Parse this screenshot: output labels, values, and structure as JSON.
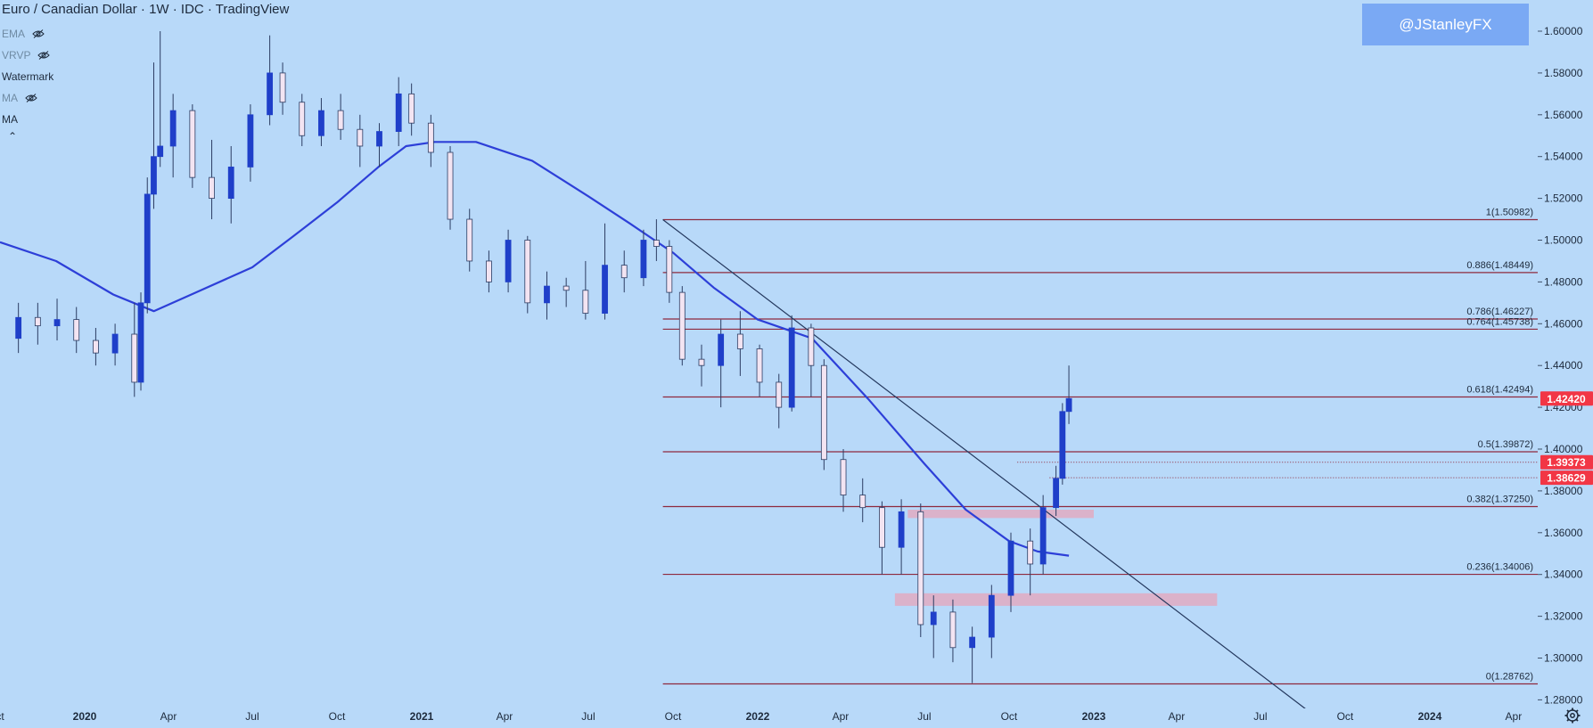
{
  "header": {
    "title": "Euro / Canadian Dollar · 1W · IDC · TradingView"
  },
  "indicators": [
    {
      "label": "EMA",
      "hidden": true
    },
    {
      "label": "VRVP",
      "hidden": true
    },
    {
      "label": "Watermark",
      "hidden": false
    },
    {
      "label": "MA",
      "hidden": true
    },
    {
      "label": "MA",
      "hidden": false
    }
  ],
  "watermark": "@JStanleyFX",
  "colors": {
    "background": "#b8d9f9",
    "bull": "#1f3fc9",
    "bear": "#f3e4f2",
    "wick": "#2c3d63",
    "ma_line": "#2d3fd8",
    "fib_line": "#8e2a3e",
    "trendline": "#24385e",
    "zone": "#e0aac2",
    "price_tag": "#f23645",
    "watermark_bg": "#7aa9f4"
  },
  "chart_data": {
    "type": "candlestick",
    "title": "Euro / Canadian Dollar · 1W · IDC · TradingView",
    "symbol": "EURCAD",
    "interval": "1W",
    "ylim": [
      1.27,
      1.61
    ],
    "y_ticks": [
      "1.28000",
      "1.30000",
      "1.32000",
      "1.34000",
      "1.36000",
      "1.38000",
      "1.40000",
      "1.42000",
      "1.44000",
      "1.46000",
      "1.48000",
      "1.50000",
      "1.52000",
      "1.54000",
      "1.56000",
      "1.58000",
      "1.60000"
    ],
    "x_ticks": [
      {
        "label": "ct",
        "date": "2019-10-01",
        "bold": false
      },
      {
        "label": "2020",
        "date": "2020-01-01",
        "bold": true
      },
      {
        "label": "Apr",
        "date": "2020-04-01",
        "bold": false
      },
      {
        "label": "Jul",
        "date": "2020-07-01",
        "bold": false
      },
      {
        "label": "Oct",
        "date": "2020-10-01",
        "bold": false
      },
      {
        "label": "2021",
        "date": "2021-01-01",
        "bold": true
      },
      {
        "label": "Apr",
        "date": "2021-04-01",
        "bold": false
      },
      {
        "label": "Jul",
        "date": "2021-07-01",
        "bold": false
      },
      {
        "label": "Oct",
        "date": "2021-10-01",
        "bold": false
      },
      {
        "label": "2022",
        "date": "2022-01-01",
        "bold": true
      },
      {
        "label": "Apr",
        "date": "2022-04-01",
        "bold": false
      },
      {
        "label": "Jul",
        "date": "2022-07-01",
        "bold": false
      },
      {
        "label": "Oct",
        "date": "2022-10-01",
        "bold": false
      },
      {
        "label": "2023",
        "date": "2023-01-01",
        "bold": true
      },
      {
        "label": "Apr",
        "date": "2023-04-01",
        "bold": false
      },
      {
        "label": "Jul",
        "date": "2023-07-01",
        "bold": false
      },
      {
        "label": "Oct",
        "date": "2023-10-01",
        "bold": false
      },
      {
        "label": "2024",
        "date": "2024-01-01",
        "bold": true
      },
      {
        "label": "Apr",
        "date": "2024-04-01",
        "bold": false
      }
    ],
    "candles": [
      {
        "date": "2019-10-21",
        "o": 1.453,
        "h": 1.47,
        "l": 1.446,
        "c": 1.463
      },
      {
        "date": "2019-11-11",
        "o": 1.463,
        "h": 1.47,
        "l": 1.45,
        "c": 1.459
      },
      {
        "date": "2019-12-02",
        "o": 1.459,
        "h": 1.472,
        "l": 1.452,
        "c": 1.462
      },
      {
        "date": "2019-12-23",
        "o": 1.462,
        "h": 1.468,
        "l": 1.446,
        "c": 1.452
      },
      {
        "date": "2020-01-13",
        "o": 1.452,
        "h": 1.458,
        "l": 1.44,
        "c": 1.446
      },
      {
        "date": "2020-02-03",
        "o": 1.446,
        "h": 1.46,
        "l": 1.44,
        "c": 1.455
      },
      {
        "date": "2020-02-24",
        "o": 1.455,
        "h": 1.47,
        "l": 1.425,
        "c": 1.432
      },
      {
        "date": "2020-03-02",
        "o": 1.432,
        "h": 1.475,
        "l": 1.428,
        "c": 1.47
      },
      {
        "date": "2020-03-09",
        "o": 1.47,
        "h": 1.53,
        "l": 1.465,
        "c": 1.522
      },
      {
        "date": "2020-03-16",
        "o": 1.522,
        "h": 1.585,
        "l": 1.515,
        "c": 1.54
      },
      {
        "date": "2020-03-23",
        "o": 1.54,
        "h": 1.6,
        "l": 1.535,
        "c": 1.545
      },
      {
        "date": "2020-04-06",
        "o": 1.545,
        "h": 1.57,
        "l": 1.53,
        "c": 1.562
      },
      {
        "date": "2020-04-27",
        "o": 1.562,
        "h": 1.565,
        "l": 1.525,
        "c": 1.53
      },
      {
        "date": "2020-05-18",
        "o": 1.53,
        "h": 1.548,
        "l": 1.51,
        "c": 1.52
      },
      {
        "date": "2020-06-08",
        "o": 1.52,
        "h": 1.545,
        "l": 1.508,
        "c": 1.535
      },
      {
        "date": "2020-06-29",
        "o": 1.535,
        "h": 1.565,
        "l": 1.528,
        "c": 1.56
      },
      {
        "date": "2020-07-20",
        "o": 1.56,
        "h": 1.598,
        "l": 1.555,
        "c": 1.58
      },
      {
        "date": "2020-08-03",
        "o": 1.58,
        "h": 1.585,
        "l": 1.56,
        "c": 1.566
      },
      {
        "date": "2020-08-24",
        "o": 1.566,
        "h": 1.57,
        "l": 1.545,
        "c": 1.55
      },
      {
        "date": "2020-09-14",
        "o": 1.55,
        "h": 1.568,
        "l": 1.545,
        "c": 1.562
      },
      {
        "date": "2020-10-05",
        "o": 1.562,
        "h": 1.57,
        "l": 1.548,
        "c": 1.553
      },
      {
        "date": "2020-10-26",
        "o": 1.553,
        "h": 1.56,
        "l": 1.535,
        "c": 1.545
      },
      {
        "date": "2020-11-16",
        "o": 1.545,
        "h": 1.556,
        "l": 1.535,
        "c": 1.552
      },
      {
        "date": "2020-12-07",
        "o": 1.552,
        "h": 1.578,
        "l": 1.545,
        "c": 1.57
      },
      {
        "date": "2020-12-21",
        "o": 1.57,
        "h": 1.575,
        "l": 1.55,
        "c": 1.556
      },
      {
        "date": "2021-01-11",
        "o": 1.556,
        "h": 1.56,
        "l": 1.535,
        "c": 1.542
      },
      {
        "date": "2021-02-01",
        "o": 1.542,
        "h": 1.545,
        "l": 1.505,
        "c": 1.51
      },
      {
        "date": "2021-02-22",
        "o": 1.51,
        "h": 1.515,
        "l": 1.485,
        "c": 1.49
      },
      {
        "date": "2021-03-15",
        "o": 1.49,
        "h": 1.495,
        "l": 1.475,
        "c": 1.48
      },
      {
        "date": "2021-04-05",
        "o": 1.48,
        "h": 1.505,
        "l": 1.475,
        "c": 1.5
      },
      {
        "date": "2021-04-26",
        "o": 1.5,
        "h": 1.502,
        "l": 1.465,
        "c": 1.47
      },
      {
        "date": "2021-05-17",
        "o": 1.47,
        "h": 1.485,
        "l": 1.462,
        "c": 1.478
      },
      {
        "date": "2021-06-07",
        "o": 1.478,
        "h": 1.482,
        "l": 1.468,
        "c": 1.476
      },
      {
        "date": "2021-06-28",
        "o": 1.476,
        "h": 1.49,
        "l": 1.462,
        "c": 1.465
      },
      {
        "date": "2021-07-19",
        "o": 1.465,
        "h": 1.508,
        "l": 1.462,
        "c": 1.488
      },
      {
        "date": "2021-08-09",
        "o": 1.488,
        "h": 1.495,
        "l": 1.475,
        "c": 1.482
      },
      {
        "date": "2021-08-30",
        "o": 1.482,
        "h": 1.505,
        "l": 1.478,
        "c": 1.5
      },
      {
        "date": "2021-09-13",
        "o": 1.5,
        "h": 1.51,
        "l": 1.49,
        "c": 1.497
      },
      {
        "date": "2021-09-27",
        "o": 1.497,
        "h": 1.5,
        "l": 1.47,
        "c": 1.475
      },
      {
        "date": "2021-10-11",
        "o": 1.475,
        "h": 1.478,
        "l": 1.44,
        "c": 1.443
      },
      {
        "date": "2021-11-01",
        "o": 1.443,
        "h": 1.45,
        "l": 1.43,
        "c": 1.44
      },
      {
        "date": "2021-11-22",
        "o": 1.44,
        "h": 1.462,
        "l": 1.42,
        "c": 1.455
      },
      {
        "date": "2021-12-13",
        "o": 1.455,
        "h": 1.466,
        "l": 1.435,
        "c": 1.448
      },
      {
        "date": "2022-01-03",
        "o": 1.448,
        "h": 1.45,
        "l": 1.425,
        "c": 1.432
      },
      {
        "date": "2022-01-24",
        "o": 1.432,
        "h": 1.436,
        "l": 1.41,
        "c": 1.42
      },
      {
        "date": "2022-02-07",
        "o": 1.42,
        "h": 1.464,
        "l": 1.418,
        "c": 1.458
      },
      {
        "date": "2022-02-28",
        "o": 1.458,
        "h": 1.46,
        "l": 1.425,
        "c": 1.44
      },
      {
        "date": "2022-03-14",
        "o": 1.44,
        "h": 1.443,
        "l": 1.39,
        "c": 1.395
      },
      {
        "date": "2022-04-04",
        "o": 1.395,
        "h": 1.4,
        "l": 1.37,
        "c": 1.378
      },
      {
        "date": "2022-04-25",
        "o": 1.378,
        "h": 1.386,
        "l": 1.365,
        "c": 1.372
      },
      {
        "date": "2022-05-16",
        "o": 1.372,
        "h": 1.375,
        "l": 1.34,
        "c": 1.353
      },
      {
        "date": "2022-06-06",
        "o": 1.353,
        "h": 1.376,
        "l": 1.34,
        "c": 1.37
      },
      {
        "date": "2022-06-27",
        "o": 1.37,
        "h": 1.374,
        "l": 1.31,
        "c": 1.316
      },
      {
        "date": "2022-07-11",
        "o": 1.316,
        "h": 1.33,
        "l": 1.3,
        "c": 1.322
      },
      {
        "date": "2022-08-01",
        "o": 1.322,
        "h": 1.328,
        "l": 1.298,
        "c": 1.305
      },
      {
        "date": "2022-08-22",
        "o": 1.305,
        "h": 1.315,
        "l": 1.288,
        "c": 1.31
      },
      {
        "date": "2022-09-12",
        "o": 1.31,
        "h": 1.335,
        "l": 1.3,
        "c": 1.33
      },
      {
        "date": "2022-10-03",
        "o": 1.33,
        "h": 1.36,
        "l": 1.322,
        "c": 1.356
      },
      {
        "date": "2022-10-24",
        "o": 1.356,
        "h": 1.362,
        "l": 1.33,
        "c": 1.345
      },
      {
        "date": "2022-11-07",
        "o": 1.345,
        "h": 1.378,
        "l": 1.34,
        "c": 1.372
      },
      {
        "date": "2022-11-21",
        "o": 1.372,
        "h": 1.392,
        "l": 1.368,
        "c": 1.386
      },
      {
        "date": "2022-11-28",
        "o": 1.386,
        "h": 1.422,
        "l": 1.383,
        "c": 1.418
      },
      {
        "date": "2022-12-05",
        "o": 1.418,
        "h": 1.44,
        "l": 1.412,
        "c": 1.4242
      }
    ],
    "moving_average": {
      "label": "MA",
      "points": [
        {
          "date": "2019-10-01",
          "v": 1.499
        },
        {
          "date": "2019-12-01",
          "v": 1.49
        },
        {
          "date": "2020-02-01",
          "v": 1.474
        },
        {
          "date": "2020-03-16",
          "v": 1.466
        },
        {
          "date": "2020-05-01",
          "v": 1.475
        },
        {
          "date": "2020-07-01",
          "v": 1.487
        },
        {
          "date": "2020-08-15",
          "v": 1.502
        },
        {
          "date": "2020-10-01",
          "v": 1.518
        },
        {
          "date": "2020-11-15",
          "v": 1.535
        },
        {
          "date": "2020-12-15",
          "v": 1.545
        },
        {
          "date": "2021-01-15",
          "v": 1.547
        },
        {
          "date": "2021-03-01",
          "v": 1.547
        },
        {
          "date": "2021-05-01",
          "v": 1.538
        },
        {
          "date": "2021-07-01",
          "v": 1.521
        },
        {
          "date": "2021-08-15",
          "v": 1.508
        },
        {
          "date": "2021-10-01",
          "v": 1.494
        },
        {
          "date": "2021-11-15",
          "v": 1.477
        },
        {
          "date": "2022-01-01",
          "v": 1.462
        },
        {
          "date": "2022-03-01",
          "v": 1.453
        },
        {
          "date": "2022-05-01",
          "v": 1.424
        },
        {
          "date": "2022-07-01",
          "v": 1.393
        },
        {
          "date": "2022-08-15",
          "v": 1.371
        },
        {
          "date": "2022-10-01",
          "v": 1.356
        },
        {
          "date": "2022-11-01",
          "v": 1.351
        },
        {
          "date": "2022-12-05",
          "v": 1.349
        }
      ]
    },
    "trendline": {
      "from": {
        "date": "2021-09-20",
        "v": 1.5098
      },
      "to": {
        "date": "2023-09-05",
        "v": 1.27
      }
    },
    "fib_start": "2021-09-20",
    "fib_levels": [
      {
        "label": "1(1.50982)",
        "value": 1.50982
      },
      {
        "label": "0.886(1.48449)",
        "value": 1.48449
      },
      {
        "label": "0.786(1.46227)",
        "value": 1.46227
      },
      {
        "label": "0.764(1.45738)",
        "value": 1.45738
      },
      {
        "label": "0.618(1.42494)",
        "value": 1.42494
      },
      {
        "label": "0.5(1.39872)",
        "value": 1.39872
      },
      {
        "label": "0.382(1.37250)",
        "value": 1.3725
      },
      {
        "label": "0.236(1.34006)",
        "value": 1.34006
      },
      {
        "label": "0(1.28762)",
        "value": 1.28762
      }
    ],
    "zones": [
      {
        "from": "2022-06-13",
        "to": "2023-01-01",
        "top": 1.371,
        "bottom": 1.367
      },
      {
        "from": "2022-05-30",
        "to": "2023-05-15",
        "top": 1.331,
        "bottom": 1.325
      }
    ],
    "dotted_levels": [
      {
        "from": "2022-10-10",
        "value": 1.39373
      },
      {
        "from": "2022-11-14",
        "value": 1.38629
      }
    ],
    "price_labels": [
      {
        "label": "1.42420",
        "value": 1.4242
      },
      {
        "label": "1.39373",
        "value": 1.39373
      },
      {
        "label": "1.38629",
        "value": 1.38629
      }
    ]
  }
}
